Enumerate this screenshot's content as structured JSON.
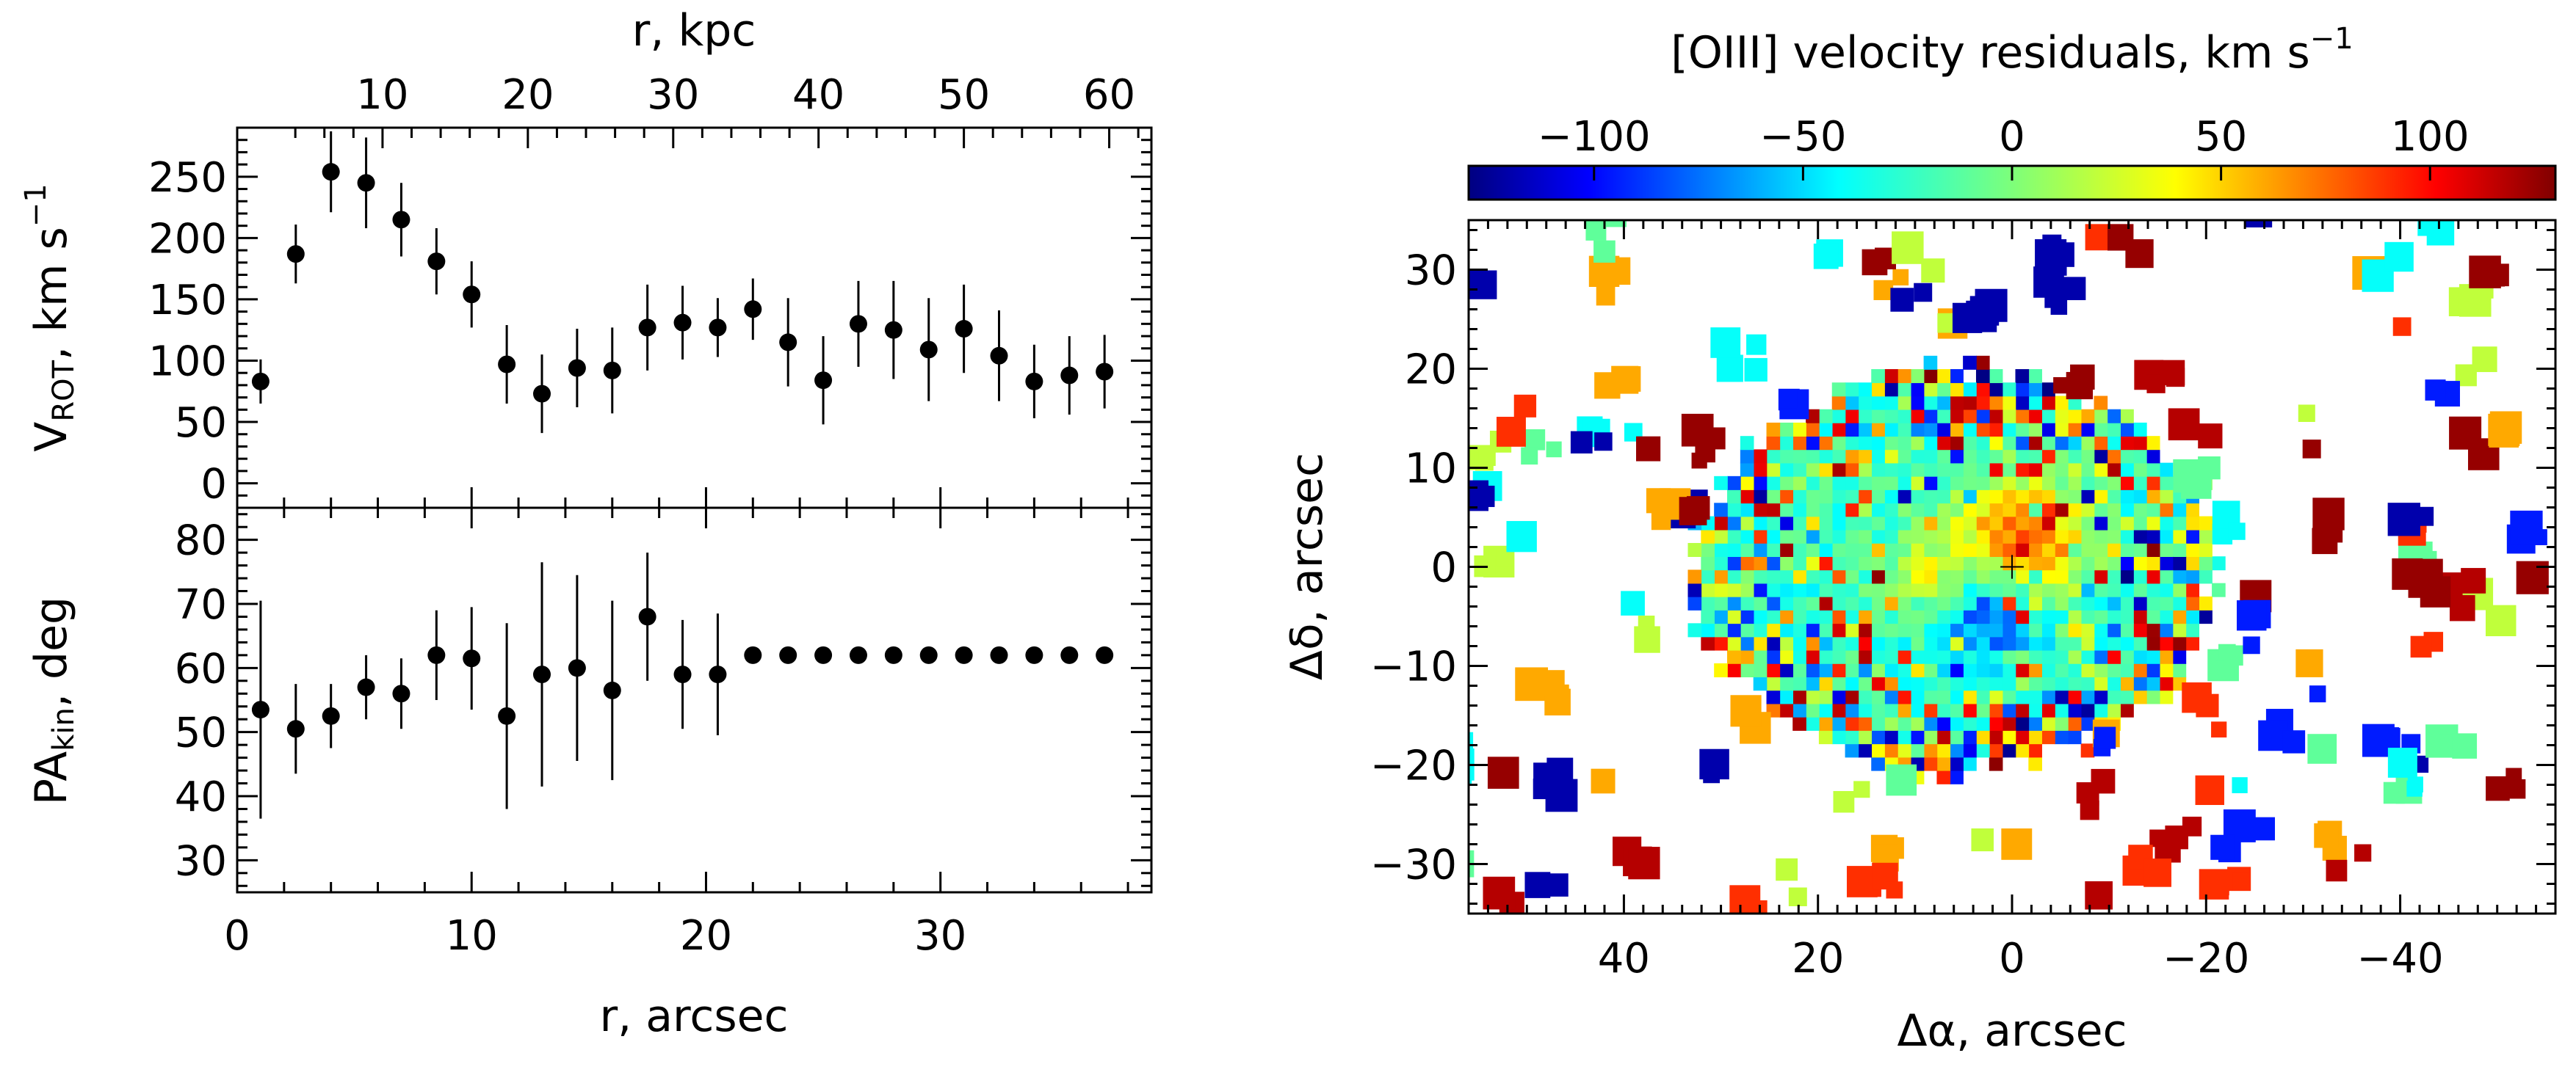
{
  "chart_data": [
    {
      "type": "scatter",
      "panel": "rotation-velocity",
      "xlabel": "r, arcsec",
      "top_xlabel": "r, kpc",
      "ylabel_main": "V",
      "ylabel_sub": "ROT",
      "ylabel_unit": ", km s",
      "ylabel_sup": "−1",
      "xlim": [
        0,
        39
      ],
      "ylim": [
        -20,
        290
      ],
      "x_ticks": [
        "0",
        "10",
        "20",
        "30"
      ],
      "x_tick_values": [
        0,
        10,
        20,
        30
      ],
      "top_ticks": [
        "10",
        "20",
        "30",
        "40",
        "50",
        "60"
      ],
      "top_tick_values_arcsec": [
        6.2,
        12.4,
        18.6,
        24.8,
        31.0,
        37.2
      ],
      "y_ticks": [
        "0",
        "50",
        "100",
        "150",
        "200",
        "250"
      ],
      "y_tick_values": [
        0,
        50,
        100,
        150,
        200,
        250
      ],
      "x": [
        1.0,
        2.5,
        4.0,
        5.5,
        7.0,
        8.5,
        10.0,
        11.5,
        13.0,
        14.5,
        16.0,
        17.5,
        19.0,
        20.5,
        22.0,
        23.5,
        25.0,
        26.5,
        28.0,
        29.5,
        31.0,
        32.5,
        34.0,
        35.5,
        37.0
      ],
      "y": [
        83,
        187,
        254,
        245,
        215,
        181,
        154,
        97,
        73,
        94,
        92,
        127,
        131,
        127,
        142,
        115,
        84,
        130,
        125,
        109,
        126,
        104,
        83,
        88,
        91
      ],
      "yerr": [
        18,
        24,
        33,
        37,
        30,
        27,
        27,
        32,
        32,
        32,
        35,
        35,
        30,
        24,
        25,
        36,
        36,
        35,
        40,
        42,
        36,
        37,
        30,
        32,
        30
      ]
    },
    {
      "type": "scatter",
      "panel": "kinematic-position-angle",
      "xlabel": "r, arcsec",
      "ylabel_main": "PA",
      "ylabel_sub": "kin",
      "ylabel_unit": ", deg",
      "xlim": [
        0,
        39
      ],
      "ylim": [
        25,
        85
      ],
      "y_ticks": [
        "30",
        "40",
        "50",
        "60",
        "70",
        "80"
      ],
      "y_tick_values": [
        30,
        40,
        50,
        60,
        70,
        80
      ],
      "x": [
        1.0,
        2.5,
        4.0,
        5.5,
        7.0,
        8.5,
        10.0,
        11.5,
        13.0,
        14.5,
        16.0,
        17.5,
        19.0,
        20.5,
        22.0,
        23.5,
        25.0,
        26.5,
        28.0,
        29.5,
        31.0,
        32.5,
        34.0,
        35.5,
        37.0
      ],
      "y": [
        53.5,
        50.5,
        52.5,
        57.0,
        56.0,
        62.0,
        61.5,
        52.5,
        59.0,
        60.0,
        56.5,
        68.0,
        59.0,
        59.0,
        62.0,
        62.0,
        62.0,
        62.0,
        62.0,
        62.0,
        62.0,
        62.0,
        62.0,
        62.0,
        62.0
      ],
      "yerr": [
        17.0,
        7.0,
        5.0,
        5.0,
        5.5,
        7.0,
        8.0,
        14.5,
        17.5,
        14.5,
        14.0,
        10.0,
        8.5,
        9.5,
        0,
        0,
        0,
        0,
        0,
        0,
        0,
        0,
        0,
        0,
        0
      ]
    },
    {
      "type": "heatmap",
      "panel": "oiii-velocity-residuals",
      "colorbar_title_prefix": "[OIII] velocity residuals, km s",
      "colorbar_title_sup": "−1",
      "colorbar_range": [
        -130,
        130
      ],
      "colorbar_ticks": [
        "−100",
        "−50",
        "0",
        "50",
        "100"
      ],
      "colorbar_tick_values": [
        -100,
        -50,
        0,
        50,
        100
      ],
      "xlabel": "Δα, arcsec",
      "ylabel": "Δδ, arcsec",
      "xlim": [
        56,
        -56
      ],
      "ylim": [
        -35,
        35
      ],
      "x_ticks": [
        "40",
        "20",
        "0",
        "−20",
        "−40"
      ],
      "x_tick_values": [
        40,
        20,
        0,
        -20,
        -40
      ],
      "y_ticks": [
        "−30",
        "−20",
        "−10",
        "0",
        "10",
        "20",
        "30"
      ],
      "y_tick_values": [
        -30,
        -20,
        -10,
        0,
        10,
        20,
        30
      ],
      "blob_description": "Dense central region of residual pixels (green/cyan core, orange NW lobe, blue SE area) surrounded by scattered patches of all colors"
    }
  ]
}
